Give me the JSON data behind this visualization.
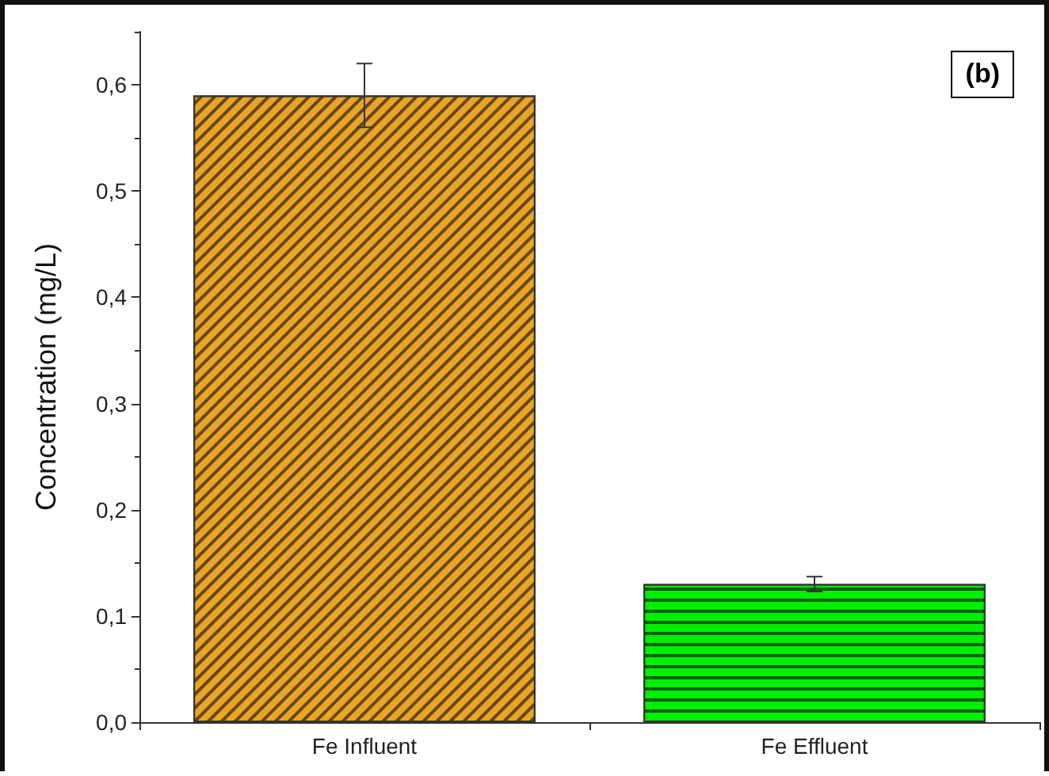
{
  "chart_data": {
    "type": "bar",
    "ylabel": "Concentration (mg/L)",
    "categories": [
      "Fe Influent",
      "Fe Effluent"
    ],
    "values": [
      0.59,
      0.13
    ],
    "colors": [
      "#e8a52a",
      "#00ee00"
    ],
    "errors": [
      0.03,
      0.007
    ],
    "ylim": [
      0,
      0.65
    ],
    "yticks": [
      {
        "value": 0,
        "label": "0,0"
      },
      {
        "value": 0.1,
        "label": "0,1"
      },
      {
        "value": 0.2,
        "label": "0,2"
      },
      {
        "value": 0.3,
        "label": "0,3"
      },
      {
        "value": 0.4,
        "label": "0,4"
      },
      {
        "value": 0.5,
        "label": "0,5"
      },
      {
        "value": 0.6,
        "label": "0,6"
      }
    ],
    "annotations": [
      "(b)"
    ]
  }
}
